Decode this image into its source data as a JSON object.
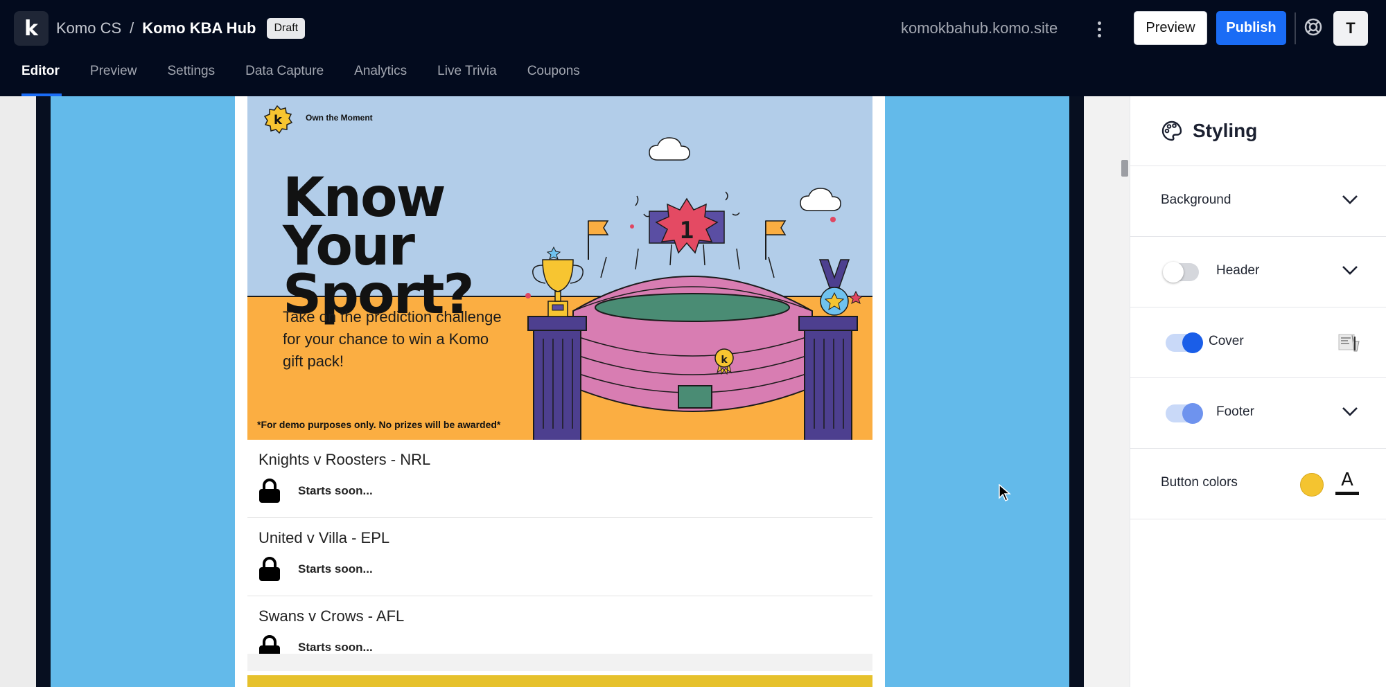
{
  "header": {
    "logo_glyph": "k",
    "org": "Komo CS",
    "separator": "/",
    "project": "Komo KBA Hub",
    "status_badge": "Draft",
    "domain": "komokbahub.komo.site",
    "preview_label": "Preview",
    "publish_label": "Publish",
    "avatar_initial": "T",
    "tabs": [
      {
        "label": "Editor",
        "active": true
      },
      {
        "label": "Preview",
        "active": false
      },
      {
        "label": "Settings",
        "active": false
      },
      {
        "label": "Data Capture",
        "active": false
      },
      {
        "label": "Analytics",
        "active": false
      },
      {
        "label": "Live Trivia",
        "active": false
      },
      {
        "label": "Coupons",
        "active": false
      }
    ],
    "colors": {
      "bar_bg": "#030b1e",
      "accent": "#1a6cf5"
    }
  },
  "hero": {
    "tagline": "Own the Moment",
    "title": "Know Your Sport?",
    "subtitle": "Take on the prediction challenge for your chance to win a Komo gift pack!",
    "disclaimer": "*For demo purposes only. No prizes will be awarded*",
    "rank_badge": "1",
    "badge_glyph": "k",
    "colors": {
      "sky": "#b2cde9",
      "ground": "#fbae42",
      "stadium": "#d87db2",
      "pillars": "#4d3f8f",
      "field": "#4a8c74"
    }
  },
  "matches": [
    {
      "title": "Knights v Roosters - NRL",
      "status": "Starts soon..."
    },
    {
      "title": "United v Villa - EPL",
      "status": "Starts soon..."
    },
    {
      "title": "Swans v Crows - AFL",
      "status": "Starts soon..."
    }
  ],
  "panel": {
    "title": "Styling",
    "sections": {
      "background": {
        "label": "Background"
      },
      "header": {
        "label": "Header",
        "enabled": false
      },
      "cover": {
        "label": "Cover",
        "enabled": true
      },
      "footer": {
        "label": "Footer",
        "enabled": true
      }
    },
    "button_colors": {
      "label": "Button colors",
      "fill": "#f4c430",
      "text_glyph": "A"
    }
  },
  "icons": [
    "help-circle-icon",
    "palette-icon",
    "chevron-down-icon",
    "lock-icon",
    "cover-thumbnail-icon",
    "cursor-icon",
    "kebab-menu-icon"
  ]
}
